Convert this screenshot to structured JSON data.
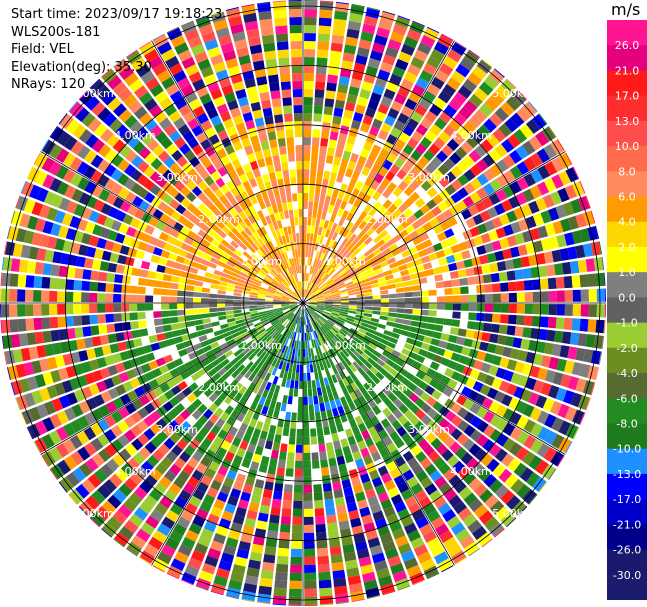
{
  "header": {
    "start_time": "Start time: 2023/09/17 19:18:23",
    "instrument": "WLS200s-181",
    "field": "Field: VEL",
    "elevation": "Elevation(deg): 35.30",
    "nrays": "NRays: 120"
  },
  "chart_data": {
    "type": "heatmap",
    "projection": "polar-ppi",
    "field": "VEL",
    "units": "m/s",
    "n_rays": 120,
    "elevation_deg": 35.3,
    "range_rings": [
      {
        "label": "1.00km",
        "value": 1.0
      },
      {
        "label": "2.00km",
        "value": 2.0
      },
      {
        "label": "3.00km",
        "value": 3.0
      },
      {
        "label": "4.00km",
        "value": 4.0
      },
      {
        "label": "5.00km",
        "value": 5.0
      }
    ],
    "ring_label_bearings_deg": [
      45,
      135,
      225,
      315
    ],
    "colorbar": {
      "title": "m/s",
      "ticks": [
        "26.0",
        "21.0",
        "17.0",
        "13.0",
        "10.0",
        "8.0",
        "6.0",
        "4.0",
        "2.0",
        "1.0",
        "0.0",
        "-1.0",
        "-2.0",
        "-4.0",
        "-6.0",
        "-8.0",
        "-10.0",
        "-13.0",
        "-17.0",
        "-21.0",
        "-26.0",
        "-30.0"
      ],
      "colors": [
        "#ff1493",
        "#e6007e",
        "#ff1a1a",
        "#ff2e2e",
        "#ff4d4d",
        "#ff6a4d",
        "#ff8a5c",
        "#ff9a00",
        "#ffd700",
        "#ffff00",
        "#7f7f7f",
        "#616161",
        "#9acd32",
        "#6b8e23",
        "#556b2f",
        "#228b22",
        "#1e7b1e",
        "#1e90ff",
        "#0000ff",
        "#0000cd",
        "#00008b",
        "#191970",
        "#1c1c6e"
      ]
    }
  }
}
